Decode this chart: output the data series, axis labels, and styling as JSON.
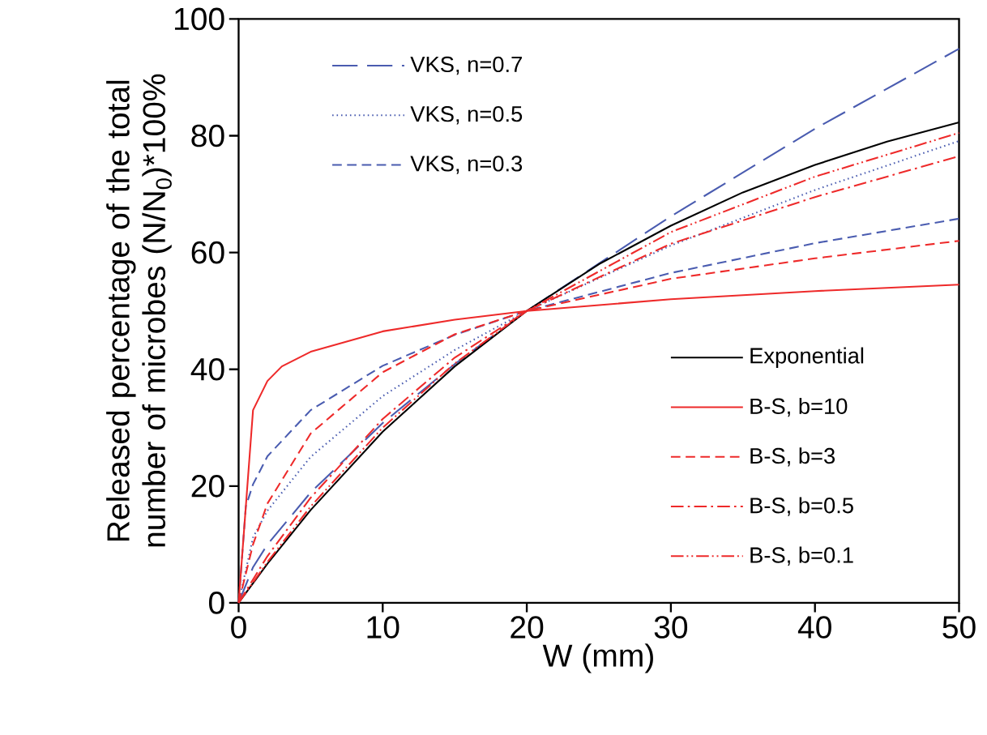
{
  "chart_data": {
    "type": "line",
    "xlabel": "W (mm)",
    "ylabel": "Released percentage of the total number of microbes (N/N$_{0}$)*100%",
    "xlim": [
      0,
      50
    ],
    "ylim": [
      0,
      100
    ],
    "xticks": [
      0,
      10,
      20,
      30,
      40,
      50
    ],
    "yticks": [
      0,
      20,
      40,
      60,
      80,
      100
    ],
    "grid": false,
    "legend": "top left",
    "marker": "none",
    "series": [
      {
        "name": "VKS, n=0.7",
        "color": "#4a5cb0",
        "line_style": "longdashed",
        "x": [
          0,
          1,
          2,
          5,
          10,
          15,
          20,
          30,
          40,
          50
        ],
        "values": [
          0,
          6.1,
          10,
          18.9,
          30.8,
          40.9,
          50,
          66.2,
          81.2,
          94.9
        ]
      },
      {
        "name": "VKS, n=0.5",
        "color": "#4a5cb0",
        "line_style": "dotted",
        "x": [
          0,
          1,
          2,
          5,
          10,
          15,
          20,
          30,
          40,
          50
        ],
        "values": [
          0,
          11.2,
          15.8,
          25,
          35.4,
          43.3,
          50,
          61.2,
          70.7,
          79.1
        ]
      },
      {
        "name": "VKS, n=0.3",
        "color": "#4a5cb0",
        "line_style": "dashed",
        "x": [
          0,
          0.5,
          1,
          2,
          5,
          10,
          15,
          20,
          30,
          40,
          50
        ],
        "values": [
          0,
          16.5,
          20.3,
          25.1,
          33,
          40.6,
          45.9,
          50,
          56.5,
          61.6,
          65.8
        ]
      },
      {
        "name": "Exponential",
        "color": "#000000",
        "line_style": "solid",
        "x": [
          0,
          2,
          5,
          10,
          15,
          20,
          25,
          30,
          35,
          40,
          45,
          50
        ],
        "values": [
          0,
          6.7,
          15.9,
          29.3,
          40.5,
          50,
          58,
          64.6,
          70.3,
          75,
          79,
          82.3
        ]
      },
      {
        "name": "B-S, b=10",
        "color": "#ee2a2a",
        "line_style": "solid",
        "x": [
          0,
          1,
          2,
          3,
          5,
          10,
          15,
          20,
          30,
          40,
          50
        ],
        "values": [
          0,
          33,
          38,
          40.5,
          43,
          46.5,
          48.5,
          50,
          52,
          53.4,
          54.5
        ]
      },
      {
        "name": "B-S, b=3",
        "color": "#ee2a2a",
        "line_style": "dashed",
        "x": [
          0,
          1,
          2,
          5,
          10,
          15,
          20,
          30,
          40,
          50
        ],
        "values": [
          0,
          10,
          17,
          29,
          39.5,
          46,
          50,
          55.5,
          59,
          62
        ]
      },
      {
        "name": "B-S, b=0.5",
        "color": "#ee2a2a",
        "line_style": "dashdot",
        "x": [
          0,
          2,
          5,
          10,
          15,
          20,
          30,
          40,
          50
        ],
        "values": [
          0,
          8,
          18,
          31.5,
          42,
          50,
          61.5,
          69.5,
          76.5
        ]
      },
      {
        "name": "B-S, b=0.1",
        "color": "#ee2a2a",
        "line_style": "dashdotdot",
        "x": [
          0,
          2,
          5,
          10,
          15,
          20,
          30,
          40,
          50
        ],
        "values": [
          0,
          7,
          16.5,
          30,
          41,
          50,
          63.5,
          73,
          80.5
        ]
      }
    ]
  }
}
